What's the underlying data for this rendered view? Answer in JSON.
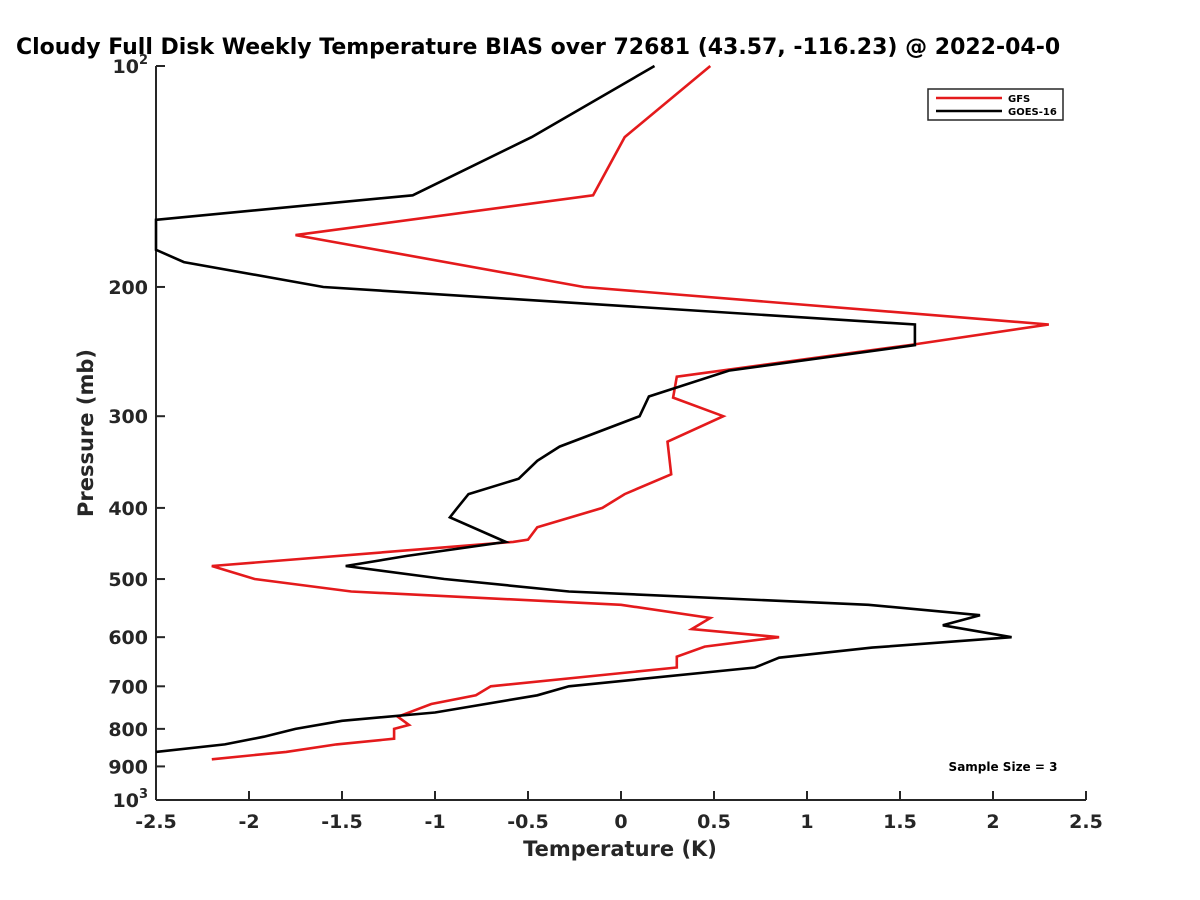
{
  "chart_data": {
    "type": "line",
    "title": "Cloudy Full Disk Weekly Temperature BIAS over 72681 (43.57, -116.23) @ 2022-04-0",
    "xlabel": "Temperature (K)",
    "ylabel": "Pressure (mb)",
    "xlim": [
      -2.5,
      2.5
    ],
    "ylim": [
      100,
      1000
    ],
    "y_scale": "log",
    "y_reversed": true,
    "grid": false,
    "legend_position": "top-right",
    "x_ticks": [
      -2.5,
      -2,
      -1.5,
      -1,
      -0.5,
      0,
      0.5,
      1,
      1.5,
      2,
      2.5
    ],
    "x_tick_labels": [
      "-2.5",
      "-2",
      "-1.5",
      "-1",
      "-0.5",
      "0",
      "0.5",
      "1",
      "1.5",
      "2",
      "2.5"
    ],
    "y_ticks": [
      {
        "value": 100,
        "base": "10",
        "exp": "2"
      },
      {
        "value": 200,
        "label": "200"
      },
      {
        "value": 300,
        "label": "300"
      },
      {
        "value": 400,
        "label": "400"
      },
      {
        "value": 500,
        "label": "500"
      },
      {
        "value": 600,
        "label": "600"
      },
      {
        "value": 700,
        "label": "700"
      },
      {
        "value": 800,
        "label": "800"
      },
      {
        "value": 900,
        "label": "900"
      },
      {
        "value": 1000,
        "base": "10",
        "exp": "3"
      }
    ],
    "annotation": "Sample Size = 3",
    "series": [
      {
        "name": "GFS",
        "color": "#e41a1c",
        "points": [
          {
            "x": 0.48,
            "p": 100
          },
          {
            "x": 0.02,
            "p": 125
          },
          {
            "x": -0.15,
            "p": 150
          },
          {
            "x": -1.75,
            "p": 170
          },
          {
            "x": -0.2,
            "p": 200
          },
          {
            "x": 2.3,
            "p": 225
          },
          {
            "x": 1.55,
            "p": 240
          },
          {
            "x": 0.3,
            "p": 265
          },
          {
            "x": 0.28,
            "p": 283
          },
          {
            "x": 0.55,
            "p": 300
          },
          {
            "x": 0.25,
            "p": 325
          },
          {
            "x": 0.27,
            "p": 360
          },
          {
            "x": 0.02,
            "p": 383
          },
          {
            "x": -0.1,
            "p": 400
          },
          {
            "x": -0.45,
            "p": 425
          },
          {
            "x": -0.5,
            "p": 442
          },
          {
            "x": -0.58,
            "p": 445
          },
          {
            "x": -2.2,
            "p": 480
          },
          {
            "x": -1.97,
            "p": 500
          },
          {
            "x": -1.45,
            "p": 520
          },
          {
            "x": 0.0,
            "p": 542
          },
          {
            "x": 0.48,
            "p": 565
          },
          {
            "x": 0.38,
            "p": 585
          },
          {
            "x": 0.85,
            "p": 600
          },
          {
            "x": 0.45,
            "p": 618
          },
          {
            "x": 0.3,
            "p": 638
          },
          {
            "x": 0.3,
            "p": 660
          },
          {
            "x": -0.7,
            "p": 700
          },
          {
            "x": -0.78,
            "p": 720
          },
          {
            "x": -1.02,
            "p": 740
          },
          {
            "x": -1.2,
            "p": 770
          },
          {
            "x": -1.14,
            "p": 790
          },
          {
            "x": -1.22,
            "p": 800
          },
          {
            "x": -1.22,
            "p": 825
          },
          {
            "x": -1.53,
            "p": 840
          },
          {
            "x": -1.8,
            "p": 860
          },
          {
            "x": -2.2,
            "p": 880
          }
        ]
      },
      {
        "name": "GOES-16",
        "color": "#000000",
        "points": [
          {
            "x": 0.18,
            "p": 100
          },
          {
            "x": -0.48,
            "p": 125
          },
          {
            "x": -1.12,
            "p": 150
          },
          {
            "x": -2.5,
            "p": 162
          },
          {
            "x": -2.5,
            "p": 178
          },
          {
            "x": -2.35,
            "p": 185
          },
          {
            "x": -1.6,
            "p": 200
          },
          {
            "x": 1.58,
            "p": 225
          },
          {
            "x": 1.58,
            "p": 240
          },
          {
            "x": 0.58,
            "p": 260
          },
          {
            "x": 0.15,
            "p": 282
          },
          {
            "x": 0.1,
            "p": 300
          },
          {
            "x": -0.33,
            "p": 330
          },
          {
            "x": -0.45,
            "p": 345
          },
          {
            "x": -0.55,
            "p": 365
          },
          {
            "x": -0.82,
            "p": 383
          },
          {
            "x": -0.88,
            "p": 400
          },
          {
            "x": -0.92,
            "p": 412
          },
          {
            "x": -0.62,
            "p": 445
          },
          {
            "x": -1.15,
            "p": 465
          },
          {
            "x": -1.48,
            "p": 480
          },
          {
            "x": -0.95,
            "p": 500
          },
          {
            "x": -0.28,
            "p": 520
          },
          {
            "x": 1.33,
            "p": 542
          },
          {
            "x": 1.93,
            "p": 560
          },
          {
            "x": 1.73,
            "p": 578
          },
          {
            "x": 2.1,
            "p": 600
          },
          {
            "x": 1.35,
            "p": 620
          },
          {
            "x": 0.85,
            "p": 640
          },
          {
            "x": 0.72,
            "p": 660
          },
          {
            "x": -0.28,
            "p": 700
          },
          {
            "x": -0.45,
            "p": 720
          },
          {
            "x": -1.0,
            "p": 760
          },
          {
            "x": -1.5,
            "p": 780
          },
          {
            "x": -1.75,
            "p": 800
          },
          {
            "x": -1.92,
            "p": 820
          },
          {
            "x": -2.13,
            "p": 840
          },
          {
            "x": -2.5,
            "p": 860
          }
        ]
      }
    ]
  }
}
